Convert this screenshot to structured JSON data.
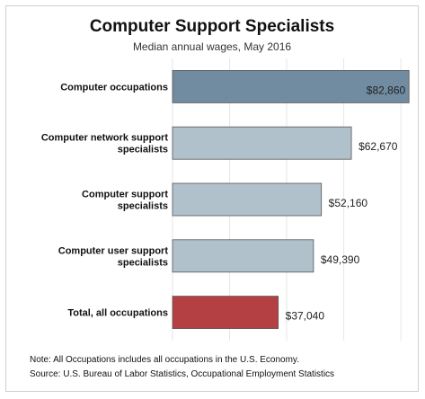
{
  "chart_data": {
    "type": "bar",
    "orientation": "horizontal",
    "title": "Computer Support Specialists",
    "subtitle": "Median annual wages, May 2016",
    "categories": [
      [
        "Computer occupations"
      ],
      [
        "Computer network support",
        "specialists"
      ],
      [
        "Computer support",
        "specialists"
      ],
      [
        "Computer user support",
        "specialists"
      ],
      [
        "Total, all occupations"
      ]
    ],
    "values": [
      82860,
      62670,
      52160,
      49390,
      37040
    ],
    "value_labels": [
      "$82,860",
      "$62,670",
      "$52,160",
      "$49,390",
      "$37,040"
    ],
    "bar_colors": [
      "#718ba0",
      "#b1c1cc",
      "#b1c1cc",
      "#b1c1cc",
      "#b54044"
    ],
    "xlim": [
      0,
      85000
    ],
    "grid": true,
    "legend": "none"
  },
  "notes": {
    "note": "Note: All Occupations includes all occupations in the U.S. Economy.",
    "source": "Source: U.S. Bureau of Labor Statistics, Occupational Employment Statistics"
  },
  "colors": {
    "grid": "#e6e6e6",
    "bar_border": "#555555"
  }
}
